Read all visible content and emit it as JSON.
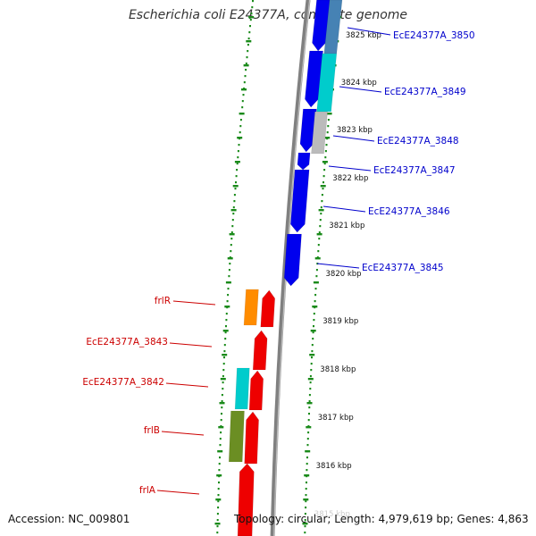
{
  "title": "Escherichia coli E24377A, complete genome",
  "footer": {
    "accession": "Accession: NC_009801",
    "topology": "Topology: circular; Length: 4,979,619 bp; Genes: 4,863"
  },
  "colors": {
    "backbone": "#808080",
    "tick_dots": "#1a8a1a",
    "label_blue": "#0000cc",
    "label_red": "#cc0000",
    "gene_blue": "#0000ee",
    "gene_red": "#ee0000",
    "gene_cyan": "#00cccc",
    "gene_gray": "#bbbbbb",
    "gene_steelblue": "#4682b4",
    "gene_orange": "#ff8c00",
    "gene_olive": "#6b8e23"
  },
  "scale_labels": [
    "3825 kbp",
    "3824 kbp",
    "3823 kbp",
    "3822 kbp",
    "3821 kbp",
    "3820 kbp",
    "3819 kbp",
    "3818 kbp",
    "3817 kbp",
    "3816 kbp",
    "3815 kbp"
  ],
  "gene_labels": [
    {
      "text": "EcE24377A_3850",
      "strand": "forward"
    },
    {
      "text": "EcE24377A_3849",
      "strand": "forward"
    },
    {
      "text": "EcE24377A_3848",
      "strand": "forward"
    },
    {
      "text": "EcE24377A_3847",
      "strand": "forward"
    },
    {
      "text": "EcE24377A_3846",
      "strand": "forward"
    },
    {
      "text": "EcE24377A_3845",
      "strand": "forward"
    },
    {
      "text": "frlR",
      "strand": "reverse"
    },
    {
      "text": "EcE24377A_3843",
      "strand": "reverse"
    },
    {
      "text": "EcE24377A_3842",
      "strand": "reverse"
    },
    {
      "text": "frlB",
      "strand": "reverse"
    },
    {
      "text": "frlA",
      "strand": "reverse"
    }
  ]
}
